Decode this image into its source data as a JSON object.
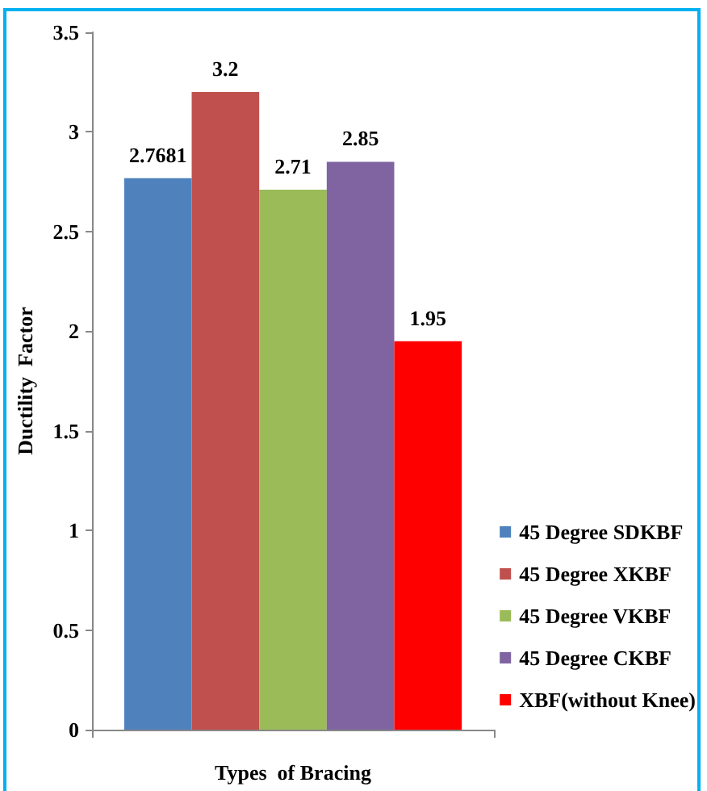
{
  "chart_data": {
    "type": "bar",
    "xlabel": "Types  of Bracing",
    "ylabel": "Ductility  Factor",
    "categories": [
      null
    ],
    "series": [
      {
        "name": "45 Degree SDKBF",
        "color": "#4f81bd",
        "values": [
          2.7681
        ]
      },
      {
        "name": "45 Degree XKBF",
        "color": "#c0504d",
        "values": [
          3.2
        ]
      },
      {
        "name": "45 Degree VKBF",
        "color": "#9bbb59",
        "values": [
          2.71
        ]
      },
      {
        "name": "45 Degree CKBF",
        "color": "#8064a2",
        "values": [
          2.85
        ]
      },
      {
        "name": "XBF(without Knee)",
        "color": "#ff0000",
        "values": [
          1.95
        ]
      }
    ],
    "ylim": [
      0,
      3.5
    ],
    "yticks": [
      0,
      0.5,
      1,
      1.5,
      2,
      2.5,
      3,
      3.5
    ],
    "grid": false,
    "legend": "bottom right",
    "data_labels": true
  }
}
